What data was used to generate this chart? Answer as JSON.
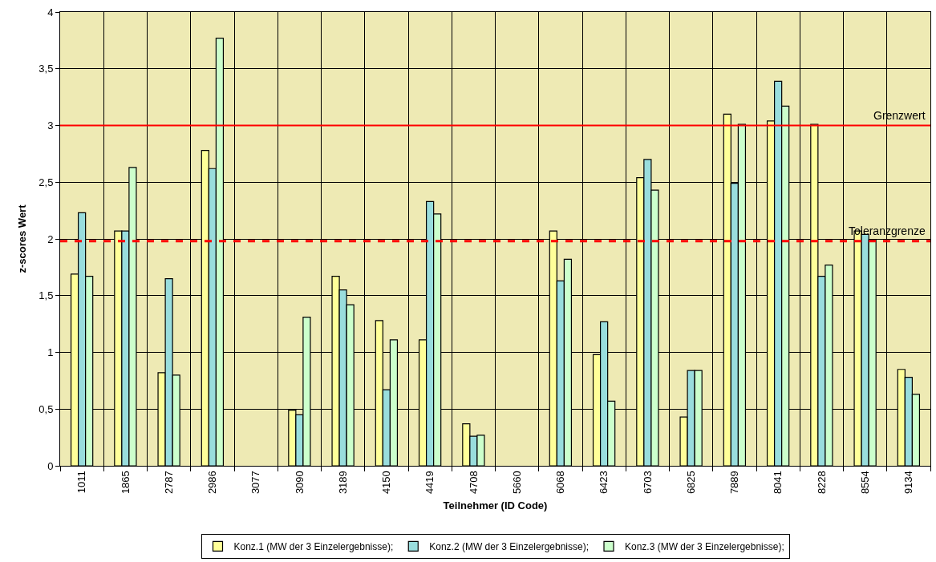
{
  "chart_data": {
    "type": "bar",
    "xlabel": "Teilnehmer (ID Code)",
    "ylabel": "z-scores Wert",
    "categories": [
      "1011",
      "1865",
      "2787",
      "2986",
      "3077",
      "3090",
      "3189",
      "4150",
      "4419",
      "4708",
      "5660",
      "6068",
      "6423",
      "6703",
      "6825",
      "7889",
      "8041",
      "8228",
      "8554",
      "9134"
    ],
    "series": [
      {
        "name": "Konz.1 (MW der 3 Einzelergebnisse);",
        "color": "#ffff99",
        "values": [
          1.69,
          2.07,
          0.82,
          2.78,
          null,
          0.49,
          1.67,
          1.28,
          1.11,
          0.37,
          null,
          2.07,
          0.98,
          2.54,
          0.43,
          3.1,
          3.04,
          3.01,
          2.07,
          0.85
        ]
      },
      {
        "name": "Konz.2 (MW der 3 Einzelergebnisse);",
        "color": "#99dddd",
        "values": [
          2.23,
          2.07,
          1.65,
          2.62,
          null,
          0.45,
          1.55,
          0.67,
          2.33,
          0.26,
          null,
          1.63,
          1.27,
          2.7,
          0.84,
          2.49,
          3.39,
          1.67,
          2.04,
          0.78
        ]
      },
      {
        "name": "Konz.3 (MW der 3 Einzelergebnisse);",
        "color": "#ccffcc",
        "values": [
          1.67,
          2.63,
          0.8,
          3.77,
          null,
          1.31,
          1.42,
          1.11,
          2.22,
          0.27,
          null,
          1.82,
          0.57,
          2.43,
          0.84,
          3.01,
          3.17,
          1.77,
          1.99,
          0.63
        ]
      }
    ],
    "ylim": [
      0,
      4
    ],
    "yticks": [
      0,
      {
        "value": 0.5,
        "label": "0,5"
      },
      1,
      {
        "value": 1.5,
        "label": "1,5"
      },
      2,
      {
        "value": 2.5,
        "label": "2,5"
      },
      3,
      {
        "value": 3.5,
        "label": "3,5"
      },
      4
    ],
    "ref_lines": [
      {
        "axis": "y",
        "value": 3,
        "label": "Grenzwert",
        "color": "#ff0000",
        "line_style": "solid"
      },
      {
        "axis": "y",
        "value": 1.98,
        "label": "Toleranzgrenze",
        "color": "#ff0000",
        "line_style": "dashed"
      }
    ],
    "grid": true,
    "legend": "bottom"
  }
}
